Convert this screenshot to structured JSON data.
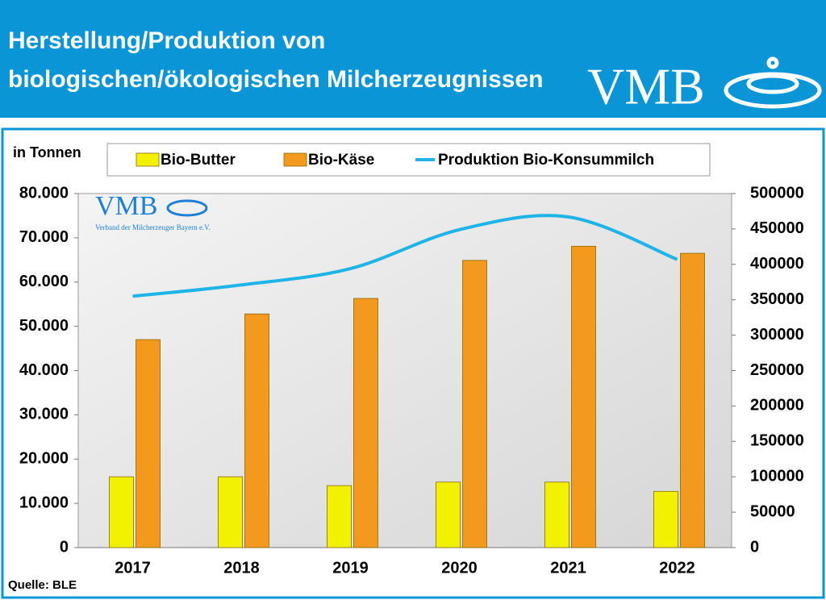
{
  "chart_data": {
    "type": "bar",
    "title": [
      "Herstellung/Produktion von",
      "biologischen/ökologischen Milcherzeugnissen"
    ],
    "logo_text": "VMB",
    "watermark_text": "VMB",
    "watermark_subtitle": "Verband der Milcherzeuger Bayern e.V.",
    "y_label": "in Tonnen",
    "source": "Quelle: BLE",
    "categories": [
      "2017",
      "2018",
      "2019",
      "2020",
      "2021",
      "2022"
    ],
    "series": [
      {
        "name": "Bio-Butter",
        "color": "#f2f200",
        "values": [
          16000,
          16000,
          14000,
          14800,
          14800,
          12700
        ]
      },
      {
        "name": "Bio-Käse",
        "color": "#f39a1e",
        "values": [
          47000,
          52800,
          56300,
          64900,
          68100,
          66500
        ]
      },
      {
        "name": "Produktion Bio-Konsummilch",
        "type": "line",
        "axis": "y2",
        "color": "#1eb4e8",
        "values": [
          355000,
          371000,
          394000,
          449000,
          467000,
          407000
        ]
      }
    ],
    "ylim": [
      0,
      80000
    ],
    "yticks": [
      0,
      {
        "value": 10000,
        "label": "10.000"
      },
      {
        "value": 20000,
        "label": "20.000"
      },
      {
        "value": 30000,
        "label": "30.000"
      },
      {
        "value": 40000,
        "label": "40.000"
      },
      {
        "value": 50000,
        "label": "50.000"
      },
      {
        "value": 60000,
        "label": "60.000"
      },
      {
        "value": 70000,
        "label": "70.000"
      },
      {
        "value": 80000,
        "label": "80.000"
      }
    ],
    "y2lim": [
      0,
      500000
    ],
    "y2ticks": [
      0,
      50000,
      100000,
      150000,
      200000,
      250000,
      300000,
      350000,
      400000,
      450000,
      500000
    ],
    "grid": false
  }
}
